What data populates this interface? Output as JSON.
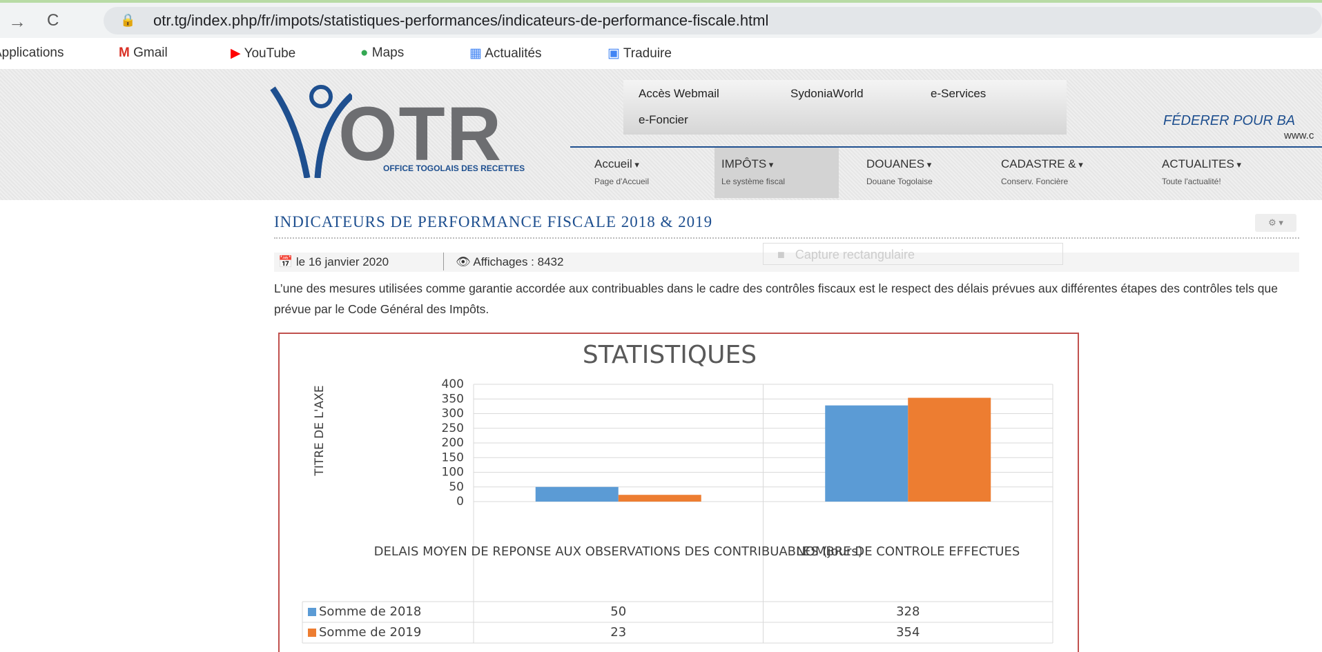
{
  "browser": {
    "url": "otr.tg/index.php/fr/impots/statistiques-performances/indicateurs-de-performance-fiscale.html",
    "bookmarks": [
      "Applications",
      "Gmail",
      "YouTube",
      "Maps",
      "Actualités",
      "Traduire"
    ]
  },
  "header": {
    "logo": "OTR",
    "logo_subtitle": "OFFICE TOGOLAIS DES RECETTES",
    "top_links": [
      "Accès Webmail",
      "SydoniaWorld",
      "e-Services",
      "e-Foncier"
    ],
    "slogan": "FÉDERER POUR BA",
    "website": "www.c",
    "nav": [
      {
        "label": "Accueil",
        "sub": "Page d'Accueil"
      },
      {
        "label": "IMPÔTS",
        "sub": "Le système fiscal"
      },
      {
        "label": "DOUANES",
        "sub": "Douane Togolaise"
      },
      {
        "label": "CADASTRE &",
        "sub": "Conserv. Foncière"
      },
      {
        "label": "ACTUALITES",
        "sub": "Toute l'actualité!"
      }
    ]
  },
  "article": {
    "title": "INDICATEURS DE PERFORMANCE FISCALE 2018 & 2019",
    "date": "le 16 janvier 2020",
    "views": "Affichages : 8432",
    "overlay": "Capture rectangulaire",
    "text": "L’une des mesures utilisées comme garantie accordée aux contribuables dans le cadre des contrôles fiscaux est le respect des délais prévues aux différentes étapes des contrôles tels que prévue par le Code Général des Impôts."
  },
  "chart_data": {
    "type": "bar",
    "title": "STATISTIQUES",
    "y_label": "TITRE DE L'AXE",
    "categories": [
      "DELAIS MOYEN DE REPONSE AUX OBSERVATIONS DES CONTRIBUABLES (jours)",
      "NOMBRE DE CONTROLE EFFECTUES"
    ],
    "series": [
      {
        "name": "Somme de 2018",
        "color": "#5b9bd5",
        "values": [
          50,
          328
        ]
      },
      {
        "name": "Somme de 2019",
        "color": "#ed7d31",
        "values": [
          23,
          354
        ]
      }
    ],
    "ylim": [
      0,
      400
    ],
    "yticks": [
      0,
      50,
      100,
      150,
      200,
      250,
      300,
      350,
      400
    ],
    "grid": true
  }
}
